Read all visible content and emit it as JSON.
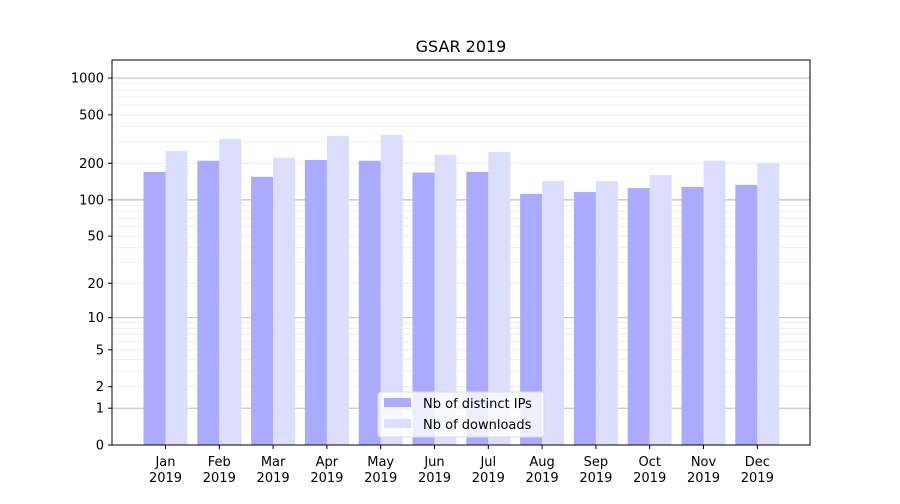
{
  "chart_data": {
    "type": "bar",
    "title": "GSAR 2019",
    "xlabel": "",
    "ylabel": "",
    "yscale": "log(y+1)",
    "ylim": [
      0,
      1300
    ],
    "yticks": [
      0,
      1,
      2,
      5,
      10,
      20,
      50,
      100,
      200,
      500,
      1000
    ],
    "grid": true,
    "legend_position": "bottom-center",
    "categories": [
      "Jan\n2019",
      "Feb\n2019",
      "Mar\n2019",
      "Apr\n2019",
      "May\n2019",
      "Jun\n2019",
      "Jul\n2019",
      "Aug\n2019",
      "Sep\n2019",
      "Oct\n2019",
      "Nov\n2019",
      "Dec\n2019"
    ],
    "series": [
      {
        "name": "Nb of distinct IPs",
        "color": "#aaaaff",
        "values": [
          170,
          210,
          155,
          213,
          210,
          168,
          170,
          112,
          116,
          125,
          128,
          133
        ]
      },
      {
        "name": "Nb of downloads",
        "color": "#ddddff",
        "values": [
          253,
          317,
          222,
          336,
          342,
          235,
          248,
          143,
          143,
          160,
          210,
          201
        ]
      }
    ]
  }
}
